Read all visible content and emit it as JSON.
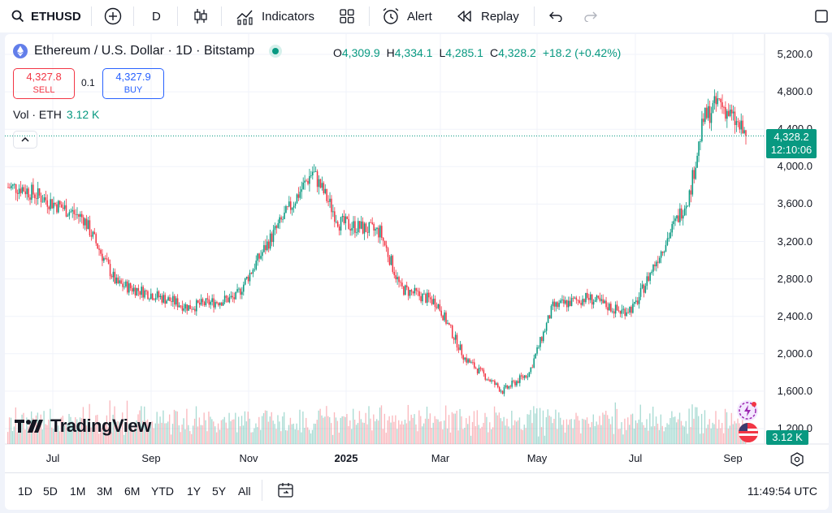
{
  "toolbar": {
    "symbol": "ETHUSD",
    "interval": "D",
    "indicators_label": "Indicators",
    "alert_label": "Alert",
    "replay_label": "Replay"
  },
  "legend": {
    "title": "Ethereum / U.S. Dollar · 1D · Bitstamp",
    "o_label": "O",
    "o_value": "4,309.9",
    "h_label": "H",
    "h_value": "4,334.1",
    "l_label": "L",
    "l_value": "4,285.1",
    "c_label": "C",
    "c_value": "4,328.2",
    "change": "+18.2 (+0.42%)"
  },
  "trade": {
    "sell_price": "4,327.8",
    "sell_label": "SELL",
    "spread": "0.1",
    "buy_price": "4,327.9",
    "buy_label": "BUY"
  },
  "volume_legend": {
    "label": "Vol · ETH",
    "value": "3.12 K"
  },
  "price_tag": {
    "price": "4,328.2",
    "countdown": "12:10:06"
  },
  "volume_tag": "3.12 K",
  "brand": "TradingView",
  "bottom": {
    "ranges": [
      "1D",
      "5D",
      "1M",
      "3M",
      "6M",
      "YTD",
      "1Y",
      "5Y",
      "All"
    ],
    "clock": "11:49:54 UTC"
  },
  "colors": {
    "up": "#089981",
    "down": "#f23645",
    "accent": "#2962ff"
  },
  "chart_data": {
    "type": "candlestick",
    "title": "Ethereum / U.S. Dollar · 1D · Bitstamp",
    "yticks": [
      "5,200.0",
      "4,800.0",
      "4,400.0",
      "4,000.0",
      "3,600.0",
      "3,200.0",
      "2,800.0",
      "2,400.0",
      "2,000.0",
      "1,600.0",
      "1,200.0"
    ],
    "ylim": [
      1200,
      5200
    ],
    "xticks": [
      "Jul",
      "Sep",
      "Nov",
      "2025",
      "Mar",
      "May",
      "Jul",
      "Sep"
    ],
    "x_approx_dates": [
      "2024-06-05",
      "2024-07-15",
      "2024-08-05",
      "2024-08-25",
      "2024-09-20",
      "2024-10-20",
      "2024-11-10",
      "2024-12-08",
      "2024-12-25",
      "2025-01-20",
      "2025-02-02",
      "2025-02-25",
      "2025-03-15",
      "2025-04-08",
      "2025-04-25",
      "2025-05-10",
      "2025-06-01",
      "2025-06-22",
      "2025-07-01",
      "2025-07-15",
      "2025-08-05",
      "2025-08-14",
      "2025-08-24",
      "2025-09-10"
    ],
    "close_approx": [
      3780,
      3450,
      2750,
      2650,
      2500,
      2600,
      3200,
      3950,
      3400,
      3300,
      2700,
      2550,
      1950,
      1600,
      1800,
      2500,
      2600,
      2450,
      2500,
      3000,
      3700,
      4500,
      4700,
      4328
    ],
    "last_close": 4328.2,
    "grid": true,
    "volume_series": "Vol · ETH"
  }
}
